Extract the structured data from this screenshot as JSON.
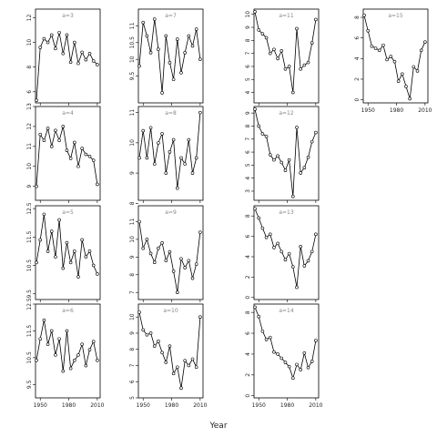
{
  "chart_data": {
    "type": "line",
    "xlabel": "Year",
    "xlim": [
      1945,
      2013
    ],
    "xticks": [
      1950,
      1980,
      2010
    ],
    "columns": 4,
    "marker": "open-circle",
    "line_color": "#000000",
    "label_color": "#888888",
    "panels": [
      {
        "label": "a=3",
        "col": 1,
        "row": 1,
        "ylim": [
          5.1,
          12.7
        ],
        "yticks": [
          6,
          8,
          10,
          12
        ],
        "x": [
          1946,
          1950,
          1954,
          1958,
          1962,
          1966,
          1970,
          1974,
          1978,
          1982,
          1986,
          1990,
          1994,
          1998,
          2002,
          2006,
          2010
        ],
        "y": [
          5.3,
          9.6,
          10.3,
          10.0,
          10.6,
          9.5,
          10.8,
          9.1,
          10.6,
          8.4,
          10.0,
          8.3,
          9.2,
          8.6,
          9.1,
          8.5,
          8.2
        ]
      },
      {
        "label": "a=4",
        "col": 1,
        "row": 2,
        "ylim": [
          8.3,
          13.0
        ],
        "yticks": [
          9,
          10,
          11,
          12,
          13
        ],
        "x": [
          1946,
          1950,
          1954,
          1958,
          1962,
          1966,
          1970,
          1974,
          1978,
          1982,
          1986,
          1990,
          1994,
          1998,
          2002,
          2006,
          2010
        ],
        "y": [
          9.0,
          11.6,
          11.3,
          11.9,
          11.0,
          11.8,
          11.3,
          12.0,
          10.8,
          10.4,
          11.2,
          10.0,
          10.9,
          10.6,
          10.5,
          10.3,
          9.1
        ]
      },
      {
        "label": "a=5",
        "col": 1,
        "row": 3,
        "ylim": [
          9.3,
          12.6
        ],
        "yticks": [
          9.5,
          10.5,
          11.5,
          12.5
        ],
        "x": [
          1946,
          1950,
          1954,
          1958,
          1962,
          1966,
          1970,
          1974,
          1978,
          1982,
          1986,
          1990,
          1994,
          1998,
          2002,
          2006,
          2010
        ],
        "y": [
          10.6,
          11.4,
          12.3,
          11.0,
          11.7,
          10.8,
          12.1,
          10.4,
          11.3,
          10.6,
          11.0,
          10.1,
          11.4,
          10.8,
          11.0,
          10.5,
          10.2
        ]
      },
      {
        "label": "a=6",
        "col": 1,
        "row": 4,
        "ylim": [
          9.0,
          12.5
        ],
        "yticks": [
          9.5,
          10.5,
          11.5,
          12.5
        ],
        "x": [
          1946,
          1950,
          1954,
          1958,
          1962,
          1966,
          1970,
          1974,
          1978,
          1982,
          1986,
          1990,
          1994,
          1998,
          2002,
          2006,
          2010
        ],
        "y": [
          10.4,
          11.2,
          11.9,
          11.0,
          11.5,
          10.6,
          11.2,
          10.0,
          11.5,
          10.1,
          10.4,
          10.6,
          11.0,
          10.2,
          10.8,
          11.1,
          10.4
        ]
      },
      {
        "label": "a=7",
        "col": 2,
        "row": 1,
        "ylim": [
          8.7,
          11.5
        ],
        "yticks": [
          9.5,
          10.0,
          10.5,
          11.0
        ],
        "x": [
          1946,
          1950,
          1954,
          1958,
          1962,
          1966,
          1970,
          1974,
          1978,
          1982,
          1986,
          1990,
          1994,
          1998,
          2002,
          2006,
          2010
        ],
        "y": [
          9.8,
          11.1,
          10.7,
          10.2,
          11.2,
          10.3,
          9.0,
          10.7,
          9.9,
          9.4,
          10.6,
          9.6,
          10.2,
          10.7,
          10.4,
          10.9,
          10.0
        ]
      },
      {
        "label": "a=8",
        "col": 2,
        "row": 2,
        "ylim": [
          8.1,
          11.2
        ],
        "yticks": [
          8.0,
          9.0,
          10.0,
          11.0
        ],
        "x": [
          1946,
          1950,
          1954,
          1958,
          1962,
          1966,
          1970,
          1974,
          1978,
          1982,
          1986,
          1990,
          1994,
          1998,
          2002,
          2006,
          2010
        ],
        "y": [
          9.5,
          10.4,
          9.5,
          10.5,
          9.3,
          10.0,
          10.3,
          9.0,
          9.7,
          10.1,
          8.5,
          9.5,
          9.3,
          10.1,
          9.0,
          9.5,
          11.0
        ]
      },
      {
        "label": "a=9",
        "col": 2,
        "row": 3,
        "ylim": [
          6.6,
          11.9
        ],
        "yticks": [
          7,
          8,
          9,
          10,
          11
        ],
        "x": [
          1946,
          1950,
          1954,
          1958,
          1962,
          1966,
          1970,
          1974,
          1978,
          1982,
          1986,
          1990,
          1994,
          1998,
          2002,
          2006,
          2010
        ],
        "y": [
          11.0,
          9.5,
          10.0,
          9.2,
          8.7,
          9.5,
          9.8,
          8.8,
          9.3,
          8.2,
          7.0,
          8.9,
          8.4,
          8.8,
          7.8,
          8.6,
          10.4
        ]
      },
      {
        "label": "a=10",
        "col": 2,
        "row": 4,
        "ylim": [
          5.0,
          10.8
        ],
        "yticks": [
          5,
          6,
          7,
          8,
          9,
          10
        ],
        "x": [
          1946,
          1950,
          1954,
          1958,
          1962,
          1966,
          1970,
          1974,
          1978,
          1982,
          1986,
          1990,
          1994,
          1998,
          2002,
          2006,
          2010
        ],
        "y": [
          10.3,
          9.2,
          8.9,
          9.0,
          8.2,
          8.5,
          7.8,
          7.2,
          8.2,
          6.5,
          6.9,
          5.6,
          7.3,
          7.0,
          7.4,
          6.9,
          10.0
        ]
      },
      {
        "label": "a=11",
        "col": 3,
        "row": 1,
        "ylim": [
          3.2,
          10.4
        ],
        "yticks": [
          4,
          5,
          6,
          7,
          8,
          9,
          10
        ],
        "x": [
          1946,
          1950,
          1954,
          1958,
          1962,
          1966,
          1970,
          1974,
          1978,
          1982,
          1986,
          1990,
          1994,
          1998,
          2002,
          2006,
          2010
        ],
        "y": [
          10.2,
          8.8,
          8.5,
          8.2,
          7.0,
          7.3,
          6.6,
          7.2,
          5.8,
          6.0,
          4.0,
          8.9,
          5.8,
          6.1,
          6.3,
          7.8,
          9.6
        ]
      },
      {
        "label": "a=12",
        "col": 3,
        "row": 2,
        "ylim": [
          2.3,
          9.5
        ],
        "yticks": [
          3,
          4,
          5,
          6,
          7,
          8,
          9
        ],
        "x": [
          1946,
          1950,
          1954,
          1958,
          1962,
          1966,
          1970,
          1974,
          1978,
          1982,
          1986,
          1990,
          1994,
          1998,
          2002,
          2006,
          2010
        ],
        "y": [
          9.3,
          8.0,
          7.4,
          7.2,
          5.8,
          5.4,
          5.7,
          5.2,
          4.6,
          5.4,
          2.6,
          7.9,
          4.4,
          4.8,
          5.6,
          6.8,
          7.5
        ]
      },
      {
        "label": "a=13",
        "col": 3,
        "row": 3,
        "ylim": [
          -0.2,
          9.0
        ],
        "yticks": [
          0,
          2,
          4,
          6,
          8
        ],
        "x": [
          1946,
          1950,
          1954,
          1958,
          1962,
          1966,
          1970,
          1974,
          1978,
          1982,
          1986,
          1990,
          1994,
          1998,
          2002,
          2006,
          2010
        ],
        "y": [
          8.7,
          7.8,
          6.8,
          5.9,
          6.2,
          4.9,
          5.3,
          4.5,
          3.7,
          4.3,
          3.0,
          1.0,
          5.0,
          3.1,
          3.6,
          4.5,
          6.2
        ]
      },
      {
        "label": "a=14",
        "col": 3,
        "row": 4,
        "ylim": [
          -0.2,
          8.8
        ],
        "yticks": [
          0,
          2,
          4,
          6,
          8
        ],
        "x": [
          1946,
          1950,
          1954,
          1958,
          1962,
          1966,
          1970,
          1974,
          1978,
          1982,
          1986,
          1990,
          1994,
          1998,
          2002,
          2006,
          2010
        ],
        "y": [
          8.5,
          7.6,
          6.2,
          5.4,
          5.6,
          4.2,
          4.0,
          3.6,
          3.2,
          2.8,
          1.7,
          3.0,
          2.5,
          4.1,
          2.7,
          3.3,
          5.3
        ]
      },
      {
        "label": "a=15",
        "col": 4,
        "row": 1,
        "ylim": [
          -0.3,
          8.8
        ],
        "yticks": [
          0,
          2,
          4,
          6,
          8
        ],
        "x": [
          1946,
          1950,
          1954,
          1958,
          1962,
          1966,
          1970,
          1974,
          1978,
          1982,
          1986,
          1990,
          1994,
          1998,
          2002,
          2006,
          2010
        ],
        "y": [
          8.2,
          6.7,
          5.2,
          5.0,
          4.8,
          5.3,
          3.9,
          4.2,
          3.7,
          1.8,
          2.5,
          1.3,
          0.1,
          3.2,
          2.8,
          4.8,
          5.6
        ]
      }
    ]
  }
}
